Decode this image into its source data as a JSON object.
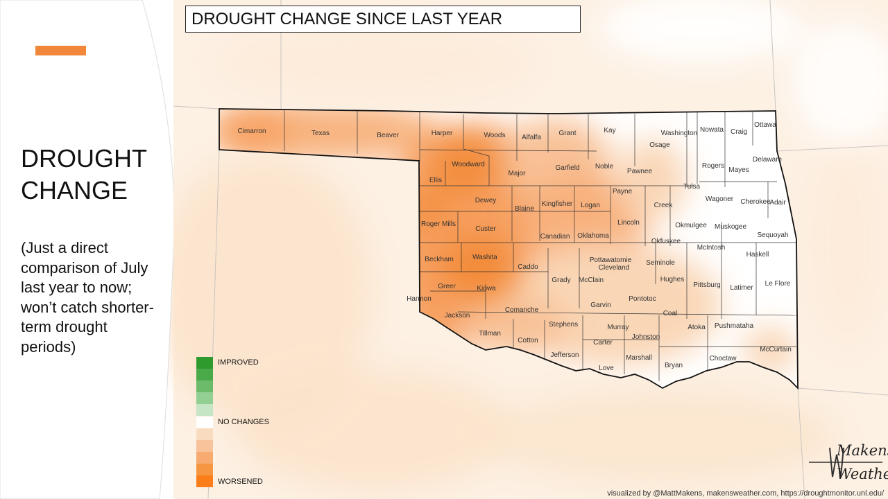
{
  "slide": {
    "title_lines": [
      "DROUGHT",
      "CHANGE"
    ],
    "note_lines": [
      "(Just a direct",
      "comparison of July",
      "last year to now;",
      "won’t catch shorter-",
      "term drought",
      "periods)"
    ],
    "accent_color": "#f0873a"
  },
  "map": {
    "title": "DROUGHT CHANGE SINCE LAST YEAR",
    "state_outline_color": "#111111",
    "counties": [
      {
        "name": "Cimarron",
        "change": 3
      },
      {
        "name": "Texas",
        "change": 2
      },
      {
        "name": "Beaver",
        "change": 2
      },
      {
        "name": "Harper",
        "change": 3
      },
      {
        "name": "Woods",
        "change": 2
      },
      {
        "name": "Alfalfa",
        "change": 1
      },
      {
        "name": "Grant",
        "change": 1
      },
      {
        "name": "Kay",
        "change": 0
      },
      {
        "name": "Osage",
        "change": 1
      },
      {
        "name": "Washington",
        "change": 0
      },
      {
        "name": "Nowata",
        "change": 0
      },
      {
        "name": "Craig",
        "change": 0
      },
      {
        "name": "Ottawa",
        "change": 0
      },
      {
        "name": "Woodward",
        "change": 4
      },
      {
        "name": "Ellis",
        "change": 3
      },
      {
        "name": "Major",
        "change": 3
      },
      {
        "name": "Garfield",
        "change": 2
      },
      {
        "name": "Noble",
        "change": 1
      },
      {
        "name": "Pawnee",
        "change": 1
      },
      {
        "name": "Rogers",
        "change": 0
      },
      {
        "name": "Mayes",
        "change": 0
      },
      {
        "name": "Delaware",
        "change": 0
      },
      {
        "name": "Tulsa",
        "change": 0
      },
      {
        "name": "Dewey",
        "change": 2
      },
      {
        "name": "Blaine",
        "change": 3
      },
      {
        "name": "Kingfisher",
        "change": 2
      },
      {
        "name": "Logan",
        "change": 2
      },
      {
        "name": "Payne",
        "change": 2
      },
      {
        "name": "Creek",
        "change": 0
      },
      {
        "name": "Wagoner",
        "change": 0
      },
      {
        "name": "Cherokee",
        "change": 0
      },
      {
        "name": "Adair",
        "change": 0
      },
      {
        "name": "Roger Mills",
        "change": 3
      },
      {
        "name": "Custer",
        "change": 3
      },
      {
        "name": "Canadian",
        "change": 2
      },
      {
        "name": "Oklahoma",
        "change": 2
      },
      {
        "name": "Lincoln",
        "change": 2
      },
      {
        "name": "Okmulgee",
        "change": 0
      },
      {
        "name": "Muskogee",
        "change": 0
      },
      {
        "name": "Sequoyah",
        "change": 0
      },
      {
        "name": "Okfuskee",
        "change": 1
      },
      {
        "name": "McIntosh",
        "change": 0
      },
      {
        "name": "Haskell",
        "change": 0
      },
      {
        "name": "Beckham",
        "change": 3
      },
      {
        "name": "Washita",
        "change": 4
      },
      {
        "name": "Caddo",
        "change": 3
      },
      {
        "name": "Grady",
        "change": 1
      },
      {
        "name": "McClain",
        "change": 1
      },
      {
        "name": "Pottawatomie",
        "change": 1
      },
      {
        "name": "Cleveland",
        "change": 1
      },
      {
        "name": "Seminole",
        "change": 1
      },
      {
        "name": "Hughes",
        "change": 1
      },
      {
        "name": "Pittsburg",
        "change": 0
      },
      {
        "name": "Latimer",
        "change": 0
      },
      {
        "name": "Le Flore",
        "change": 0
      },
      {
        "name": "Greer",
        "change": 3
      },
      {
        "name": "Harmon",
        "change": 2
      },
      {
        "name": "Kiowa",
        "change": 4
      },
      {
        "name": "Comanche",
        "change": 2
      },
      {
        "name": "Garvin",
        "change": 1
      },
      {
        "name": "Pontotoc",
        "change": 1
      },
      {
        "name": "Coal",
        "change": 1
      },
      {
        "name": "Jackson",
        "change": 3
      },
      {
        "name": "Tillman",
        "change": 2
      },
      {
        "name": "Cotton",
        "change": 1
      },
      {
        "name": "Stephens",
        "change": 1
      },
      {
        "name": "Murray",
        "change": 1
      },
      {
        "name": "Johnston",
        "change": 0
      },
      {
        "name": "Atoka",
        "change": 0
      },
      {
        "name": "Pushmataha",
        "change": 0
      },
      {
        "name": "McCurtain",
        "change": 1
      },
      {
        "name": "Carter",
        "change": 1
      },
      {
        "name": "Jefferson",
        "change": 1
      },
      {
        "name": "Love",
        "change": 0
      },
      {
        "name": "Marshall",
        "change": 1
      },
      {
        "name": "Bryan",
        "change": 0
      },
      {
        "name": "Choctaw",
        "change": 0
      }
    ]
  },
  "legend": {
    "improved_label": "IMPROVED",
    "no_change_label": "NO CHANGES",
    "worsened_label": "WORSENED",
    "improved_colors": [
      "#2e9a2e",
      "#4aaa4a",
      "#6bbb6b",
      "#93cf93",
      "#c5e5c5"
    ],
    "no_change_color": "#ffffff",
    "worsened_colors": [
      "#f9dcc0",
      "#f8c29a",
      "#f7ab70",
      "#f79640",
      "#fb7e1a"
    ]
  },
  "logo": {
    "line1": "Makens",
    "line2": "Weather"
  },
  "credit": "visualized by @MattMakens, makensweather.com, https://droughtmonitor.unl.edu/"
}
